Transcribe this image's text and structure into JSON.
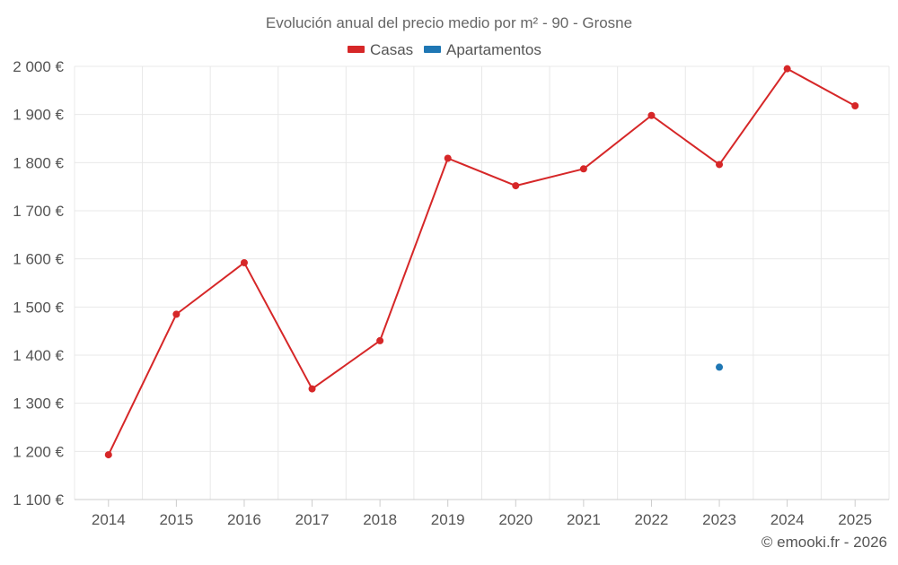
{
  "chart_data": {
    "type": "line",
    "title": "Evolución anual del precio medio por m² - 90 - Grosne",
    "categories": [
      "2014",
      "2015",
      "2016",
      "2017",
      "2018",
      "2019",
      "2020",
      "2021",
      "2022",
      "2023",
      "2024",
      "2025"
    ],
    "series": [
      {
        "name": "Casas",
        "color": "#d62728",
        "values": [
          1193,
          1485,
          1592,
          1330,
          1430,
          1809,
          1752,
          1787,
          1898,
          1796,
          1995,
          1918
        ]
      },
      {
        "name": "Apartamentos",
        "color": "#1f77b4",
        "values": [
          null,
          null,
          null,
          null,
          null,
          null,
          null,
          null,
          null,
          1375,
          null,
          null
        ]
      }
    ],
    "y_ticks": [
      "1 100 €",
      "1 200 €",
      "1 300 €",
      "1 400 €",
      "1 500 €",
      "1 600 €",
      "1 700 €",
      "1 800 €",
      "1 900 €",
      "2 000 €"
    ],
    "y_tick_values": [
      1100,
      1200,
      1300,
      1400,
      1500,
      1600,
      1700,
      1800,
      1900,
      2000
    ],
    "ylim": [
      1100,
      2000
    ],
    "grid": true,
    "legend": "top-center",
    "xlabel": "",
    "ylabel": ""
  },
  "credit": "© emooki.fr - 2026",
  "colors": {
    "grid": "#e8e8e8",
    "axis": "#cccccc",
    "text": "#555555",
    "title": "#666666"
  }
}
